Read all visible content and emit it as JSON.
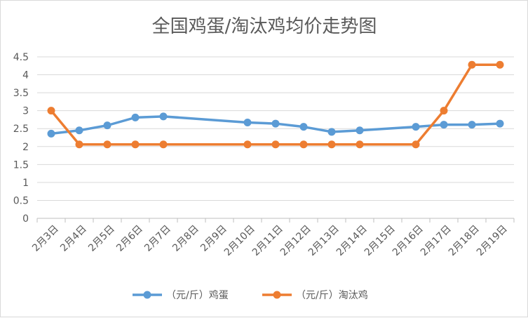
{
  "chart_data": {
    "type": "line",
    "title": "全国鸡蛋/淘汰鸡均价走势图",
    "xlabel": "",
    "ylabel": "",
    "categories": [
      "2月3日",
      "2月4日",
      "2月5日",
      "2月6日",
      "2月7日",
      "2月8日",
      "2月9日",
      "2月10日",
      "2月11日",
      "2月12日",
      "2月13日",
      "2月14日",
      "2月15日",
      "2月16日",
      "2月17日",
      "2月18日",
      "2月19日"
    ],
    "ylim": [
      0,
      4.5
    ],
    "yticks": [
      "0",
      "0.5",
      "1",
      "1.5",
      "2",
      "2.5",
      "3",
      "3.5",
      "4",
      "4.5"
    ],
    "grid": true,
    "legend_position": "bottom",
    "series": [
      {
        "name": "（元/斤）鸡蛋",
        "color": "#5B9BD5",
        "values": [
          2.36,
          2.45,
          2.59,
          2.81,
          2.84,
          null,
          null,
          2.67,
          2.64,
          2.55,
          2.41,
          2.45,
          null,
          2.55,
          2.61,
          2.61,
          2.64
        ]
      },
      {
        "name": "（元/斤）淘汰鸡",
        "color": "#ED7D31",
        "values": [
          3.0,
          2.06,
          2.06,
          2.06,
          2.06,
          null,
          null,
          2.06,
          2.06,
          2.06,
          2.06,
          2.06,
          null,
          2.06,
          3.0,
          4.28,
          4.28
        ]
      }
    ]
  }
}
